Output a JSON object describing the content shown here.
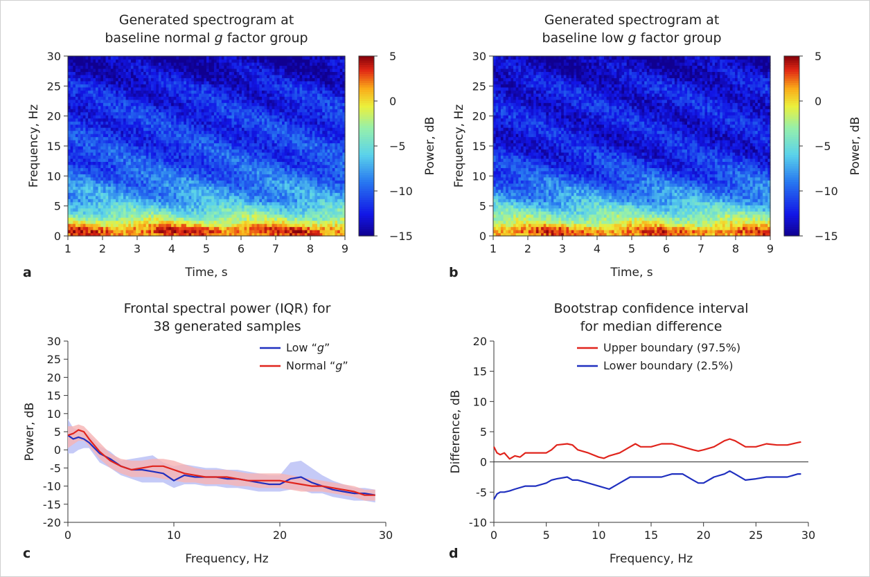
{
  "figure": {
    "panel_labels": [
      "a",
      "b",
      "c",
      "d"
    ]
  },
  "chart_data": [
    {
      "panel": "a",
      "type": "heatmap",
      "title_lines": [
        "Generated spectrogram at",
        "baseline normal ",
        "g",
        " factor group"
      ],
      "xlabel": "Time, s",
      "ylabel": "Frequency, Hz",
      "colorbar_label": "Power, dB",
      "xlim": [
        1,
        9
      ],
      "ylim": [
        0,
        30
      ],
      "xticks": [
        1,
        2,
        3,
        4,
        5,
        6,
        7,
        8,
        9
      ],
      "yticks": [
        0,
        5,
        10,
        15,
        20,
        25,
        30
      ],
      "clim": [
        -15,
        5
      ],
      "cticks": [
        5,
        0,
        -5,
        -10,
        -15
      ],
      "cticklabels": [
        "5",
        "0",
        "−5",
        "−10",
        "−15"
      ],
      "profile": {
        "freq": [
          0,
          1,
          2,
          3,
          4,
          5,
          6,
          8,
          10,
          12,
          15,
          18,
          20,
          22,
          25,
          27,
          30
        ],
        "power": [
          2,
          3,
          0,
          -3,
          -4.5,
          -6,
          -7.5,
          -8.5,
          -9.5,
          -10.5,
          -11,
          -11.5,
          -11.5,
          -12,
          -12.5,
          -13.5,
          -14.5
        ]
      }
    },
    {
      "panel": "b",
      "type": "heatmap",
      "title_lines": [
        "Generated spectrogram at",
        "baseline low ",
        "g",
        " factor group"
      ],
      "xlabel": "Time, s",
      "ylabel": "Frequency, Hz",
      "colorbar_label": "Power, dB",
      "xlim": [
        1,
        9
      ],
      "ylim": [
        0,
        30
      ],
      "xticks": [
        1,
        2,
        3,
        4,
        5,
        6,
        7,
        8,
        9
      ],
      "yticks": [
        0,
        5,
        10,
        15,
        20,
        25,
        30
      ],
      "clim": [
        -15,
        5
      ],
      "cticks": [
        5,
        0,
        -5,
        -10,
        -15
      ],
      "cticklabels": [
        "5",
        "0",
        "−5",
        "−10",
        "−15"
      ],
      "profile": {
        "freq": [
          0,
          1,
          2,
          3,
          4,
          5,
          6,
          8,
          10,
          12,
          15,
          18,
          20,
          22,
          25,
          27,
          30
        ],
        "power": [
          2,
          2.5,
          -1,
          -3,
          -4.5,
          -6,
          -7.5,
          -9,
          -10.5,
          -11.5,
          -12.5,
          -12.5,
          -12.5,
          -12.5,
          -12.5,
          -13.5,
          -14.5
        ]
      }
    },
    {
      "panel": "c",
      "type": "line",
      "title_lines": [
        "Frontal spectral power (IQR) for",
        "38 generated samples"
      ],
      "xlabel": "Frequency, Hz",
      "ylabel": "Power, dB",
      "xlim": [
        0,
        30
      ],
      "ylim": [
        -20,
        30
      ],
      "xticks": [
        0,
        10,
        20,
        30
      ],
      "yticks": [
        -20,
        -15,
        -10,
        -5,
        0,
        5,
        10,
        15,
        20,
        25,
        30
      ],
      "yticklabels": [
        "-20",
        "-15",
        "-10",
        "-5",
        "0",
        "5",
        "10",
        "15",
        "20",
        "25",
        "30"
      ],
      "legend_position": "top-right",
      "series": [
        {
          "name": "Low “g”",
          "legend_prefix": "Low “",
          "legend_italic": "g",
          "legend_suffix": "”",
          "color": "#1f2fbf",
          "band_color": "#b6bdf5",
          "x": [
            0,
            0.5,
            1,
            1.5,
            2,
            3,
            4,
            5,
            6,
            7,
            8,
            9,
            10,
            11,
            12,
            13,
            14,
            15,
            16,
            17,
            18,
            19,
            20,
            21,
            22,
            23,
            24,
            25,
            26,
            27,
            28,
            29
          ],
          "y": [
            4,
            3,
            3.5,
            3,
            2,
            -1,
            -2.5,
            -4.5,
            -5.5,
            -5.5,
            -6,
            -6.5,
            -8.5,
            -7,
            -7.5,
            -7.5,
            -7.5,
            -8,
            -8,
            -8.5,
            -9,
            -9.5,
            -9.5,
            -8,
            -7.5,
            -9,
            -10,
            -11,
            -11.5,
            -12,
            -12,
            -12.5
          ],
          "lower": [
            -1,
            -1,
            0,
            0.5,
            0.5,
            -3.5,
            -5,
            -7,
            -8,
            -9,
            -9,
            -9,
            -10.5,
            -9.5,
            -9.5,
            -10,
            -10,
            -10.5,
            -10.5,
            -11,
            -11.5,
            -11.5,
            -11.5,
            -11,
            -11,
            -12,
            -12,
            -13,
            -13.5,
            -14,
            -14,
            -14.5
          ],
          "upper": [
            8.5,
            6,
            5.5,
            5,
            4,
            1,
            -0.5,
            -3,
            -2.5,
            -2,
            -1.5,
            -3.5,
            -4.5,
            -4,
            -4.5,
            -5,
            -5,
            -5.5,
            -5.5,
            -6,
            -6.5,
            -7,
            -7,
            -3.5,
            -3,
            -5,
            -7,
            -8.5,
            -9.5,
            -10.5,
            -10.5,
            -11
          ]
        },
        {
          "name": "Normal “g”",
          "legend_prefix": "Normal “",
          "legend_italic": "g",
          "legend_suffix": "”",
          "color": "#e0231b",
          "band_color": "#f6b3b3",
          "x": [
            0,
            0.5,
            1,
            1.5,
            2,
            3,
            4,
            5,
            6,
            7,
            8,
            9,
            10,
            11,
            12,
            13,
            14,
            15,
            16,
            17,
            18,
            19,
            20,
            21,
            22,
            23,
            24,
            25,
            26,
            27,
            28,
            29
          ],
          "y": [
            4,
            4.5,
            5.5,
            5,
            3,
            -0.5,
            -3,
            -4.5,
            -5.5,
            -5,
            -4.5,
            -4.5,
            -5.5,
            -6.5,
            -7,
            -7.5,
            -7.5,
            -7.5,
            -8,
            -8.5,
            -8.5,
            -8.5,
            -8.5,
            -9,
            -9.5,
            -10,
            -10,
            -10.5,
            -11,
            -11.5,
            -12.5,
            -12.5
          ],
          "lower": [
            0.5,
            1.5,
            2.5,
            2.5,
            1,
            -2.5,
            -5,
            -6.5,
            -7.5,
            -7.5,
            -7.5,
            -8,
            -8.5,
            -9,
            -9,
            -9.5,
            -9.5,
            -9.5,
            -10,
            -10,
            -10.5,
            -10.5,
            -10.5,
            -11,
            -11.5,
            -11.5,
            -11.5,
            -12,
            -12.5,
            -13,
            -14,
            -14
          ],
          "upper": [
            6.5,
            6.5,
            7,
            6.5,
            5,
            2,
            -1,
            -2.5,
            -3,
            -3,
            -2.5,
            -2.5,
            -3,
            -4,
            -5,
            -5.5,
            -5.5,
            -5.5,
            -6,
            -6.5,
            -6.5,
            -6.5,
            -6.5,
            -7,
            -7.5,
            -8,
            -8.5,
            -9,
            -9.5,
            -10,
            -11,
            -11
          ]
        }
      ]
    },
    {
      "panel": "d",
      "type": "line",
      "title_lines": [
        "Bootstrap confidence interval",
        "for median difference"
      ],
      "xlabel": "Frequency, Hz",
      "ylabel": "Difference, dB",
      "xlim": [
        0,
        30
      ],
      "ylim": [
        -10,
        20
      ],
      "xticks": [
        0,
        5,
        10,
        15,
        20,
        25,
        30
      ],
      "yticks": [
        -10,
        -5,
        0,
        5,
        10,
        15,
        20
      ],
      "yticklabels": [
        "-10",
        "-5",
        "0",
        "5",
        "10",
        "15",
        "20"
      ],
      "reference_line_y": 0,
      "legend_position": "top-right",
      "series": [
        {
          "name": "Upper boundary (97.5%)",
          "color": "#e0231b",
          "x": [
            0,
            0.3,
            0.6,
            1,
            1.5,
            2,
            2.5,
            3,
            4,
            5,
            5.5,
            6,
            7,
            7.5,
            8,
            9,
            10,
            10.5,
            11,
            12,
            13,
            13.5,
            14,
            15,
            16,
            17,
            18,
            19,
            19.5,
            20,
            21,
            22,
            22.5,
            23,
            24,
            25,
            26,
            27,
            28,
            29,
            29.3
          ],
          "y": [
            2.5,
            1.5,
            1.2,
            1.5,
            0.5,
            1,
            0.8,
            1.5,
            1.5,
            1.5,
            2,
            2.8,
            3,
            2.8,
            2,
            1.5,
            0.8,
            0.6,
            1,
            1.5,
            2.5,
            3,
            2.5,
            2.5,
            3,
            3,
            2.5,
            2,
            1.8,
            2,
            2.5,
            3.5,
            3.8,
            3.5,
            2.5,
            2.5,
            3,
            2.8,
            2.8,
            3.2,
            3.3
          ]
        },
        {
          "name": "Lower boundary (2.5%)",
          "color": "#1f2fbf",
          "x": [
            0,
            0.3,
            0.6,
            1,
            1.5,
            2,
            3,
            4,
            5,
            5.5,
            6,
            7,
            7.5,
            8,
            9,
            10,
            11,
            12,
            13,
            14,
            15,
            16,
            17,
            18,
            19,
            19.5,
            20,
            21,
            22,
            22.5,
            23,
            24,
            25,
            26,
            27,
            28,
            29,
            29.3
          ],
          "y": [
            -6.2,
            -5.3,
            -5,
            -5,
            -4.8,
            -4.5,
            -4,
            -4,
            -3.5,
            -3,
            -2.8,
            -2.5,
            -3,
            -3,
            -3.5,
            -4,
            -4.5,
            -3.5,
            -2.5,
            -2.5,
            -2.5,
            -2.5,
            -2,
            -2,
            -3,
            -3.5,
            -3.5,
            -2.5,
            -2,
            -1.5,
            -2,
            -3,
            -2.8,
            -2.5,
            -2.5,
            -2.5,
            -2,
            -2
          ]
        }
      ]
    }
  ]
}
